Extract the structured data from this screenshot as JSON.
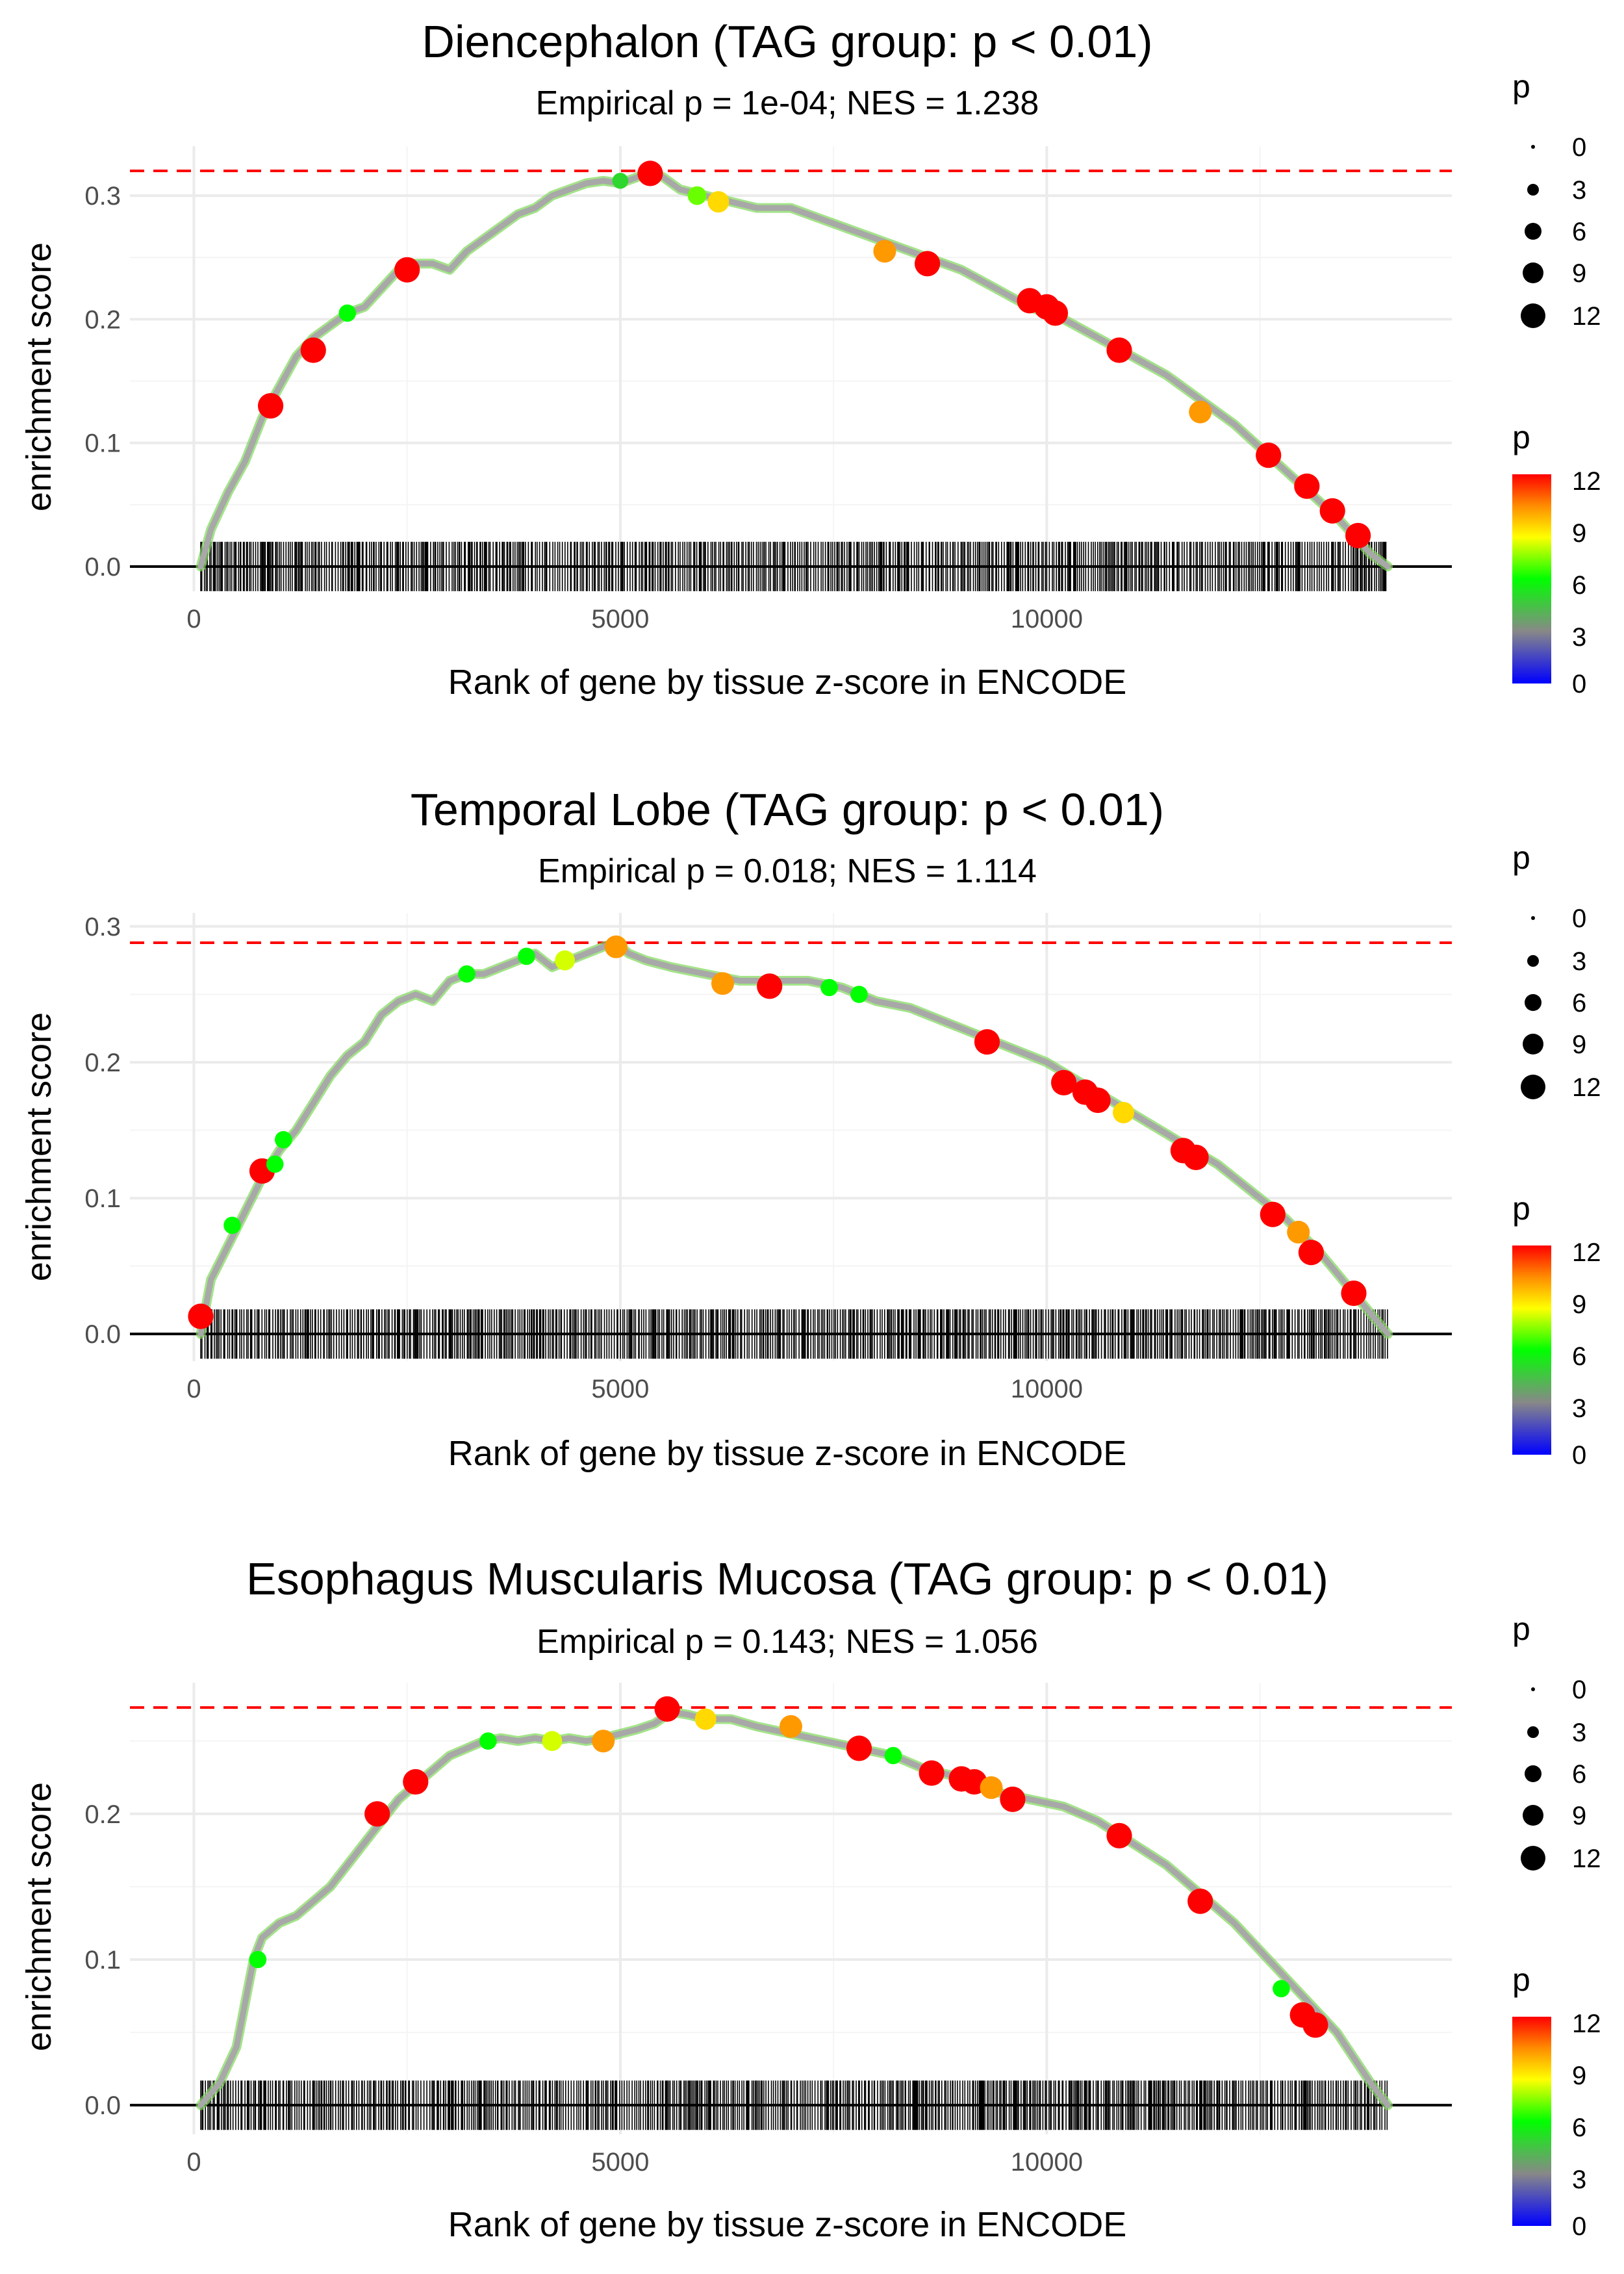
{
  "colors": {
    "ref_line": "#ff0000",
    "axis_line": "#000000",
    "curve_base": "#a8a8a8",
    "rug": "#000000",
    "gradient": [
      "#0000ff",
      "#888888",
      "#00ff00",
      "#ffff00",
      "#ff8c00",
      "#ff0000"
    ]
  },
  "legend": {
    "size_title": "p",
    "size_labels": [
      "0",
      "3",
      "6",
      "9",
      "12"
    ],
    "color_title": "p",
    "color_labels": [
      "12",
      "9",
      "6",
      "3",
      "0"
    ]
  },
  "chart_data": [
    {
      "type": "line",
      "title": "Diencephalon (TAG group: p < 0.01)",
      "subtitle": "Empirical p = 1e-04; NES = 1.238",
      "xlabel": "Rank of gene by tissue z-score in ENCODE",
      "ylabel": "enrichment score",
      "xlim": [
        -750,
        14750
      ],
      "ylim": [
        -0.02,
        0.34
      ],
      "xticks": [
        0,
        5000,
        10000
      ],
      "xtick_labels": [
        "0",
        "5000",
        "10000"
      ],
      "yticks": [
        0.0,
        0.1,
        0.2,
        0.3
      ],
      "ytick_labels": [
        "0.0",
        "0.1",
        "0.2",
        "0.3"
      ],
      "max_es": 0.32,
      "gene_range": [
        80,
        14000
      ],
      "curve_x": [
        80,
        200,
        400,
        600,
        800,
        1000,
        1200,
        1400,
        1600,
        1800,
        2000,
        2200,
        2400,
        2600,
        2800,
        3000,
        3200,
        3400,
        3600,
        3800,
        4000,
        4200,
        4400,
        4600,
        4800,
        5000,
        5200,
        5350,
        5500,
        5700,
        6000,
        6300,
        6600,
        7000,
        7400,
        7800,
        8200,
        8600,
        9000,
        9400,
        9800,
        10200,
        10600,
        11000,
        11400,
        11800,
        12200,
        12600,
        13000,
        13400,
        13800,
        14000
      ],
      "curve_y": [
        0.0,
        0.03,
        0.06,
        0.085,
        0.12,
        0.145,
        0.17,
        0.185,
        0.195,
        0.205,
        0.21,
        0.225,
        0.24,
        0.245,
        0.245,
        0.24,
        0.255,
        0.265,
        0.275,
        0.285,
        0.29,
        0.3,
        0.305,
        0.31,
        0.312,
        0.31,
        0.315,
        0.32,
        0.315,
        0.305,
        0.3,
        0.295,
        0.29,
        0.29,
        0.28,
        0.27,
        0.26,
        0.25,
        0.24,
        0.225,
        0.21,
        0.2,
        0.185,
        0.17,
        0.155,
        0.135,
        0.115,
        0.09,
        0.065,
        0.04,
        0.01,
        0.0
      ],
      "points": [
        {
          "x": 900,
          "y": 0.13,
          "p": 12
        },
        {
          "x": 1400,
          "y": 0.175,
          "p": 12
        },
        {
          "x": 1800,
          "y": 0.205,
          "p": 6
        },
        {
          "x": 2500,
          "y": 0.24,
          "p": 12
        },
        {
          "x": 5000,
          "y": 0.312,
          "p": 5
        },
        {
          "x": 5350,
          "y": 0.318,
          "p": 12
        },
        {
          "x": 5900,
          "y": 0.3,
          "p": 7
        },
        {
          "x": 6150,
          "y": 0.295,
          "p": 9
        },
        {
          "x": 8100,
          "y": 0.255,
          "p": 10
        },
        {
          "x": 8600,
          "y": 0.245,
          "p": 12
        },
        {
          "x": 9800,
          "y": 0.215,
          "p": 12
        },
        {
          "x": 10000,
          "y": 0.21,
          "p": 12
        },
        {
          "x": 10100,
          "y": 0.205,
          "p": 12
        },
        {
          "x": 10850,
          "y": 0.175,
          "p": 12
        },
        {
          "x": 11800,
          "y": 0.125,
          "p": 10
        },
        {
          "x": 12600,
          "y": 0.09,
          "p": 12
        },
        {
          "x": 13050,
          "y": 0.065,
          "p": 12
        },
        {
          "x": 13350,
          "y": 0.045,
          "p": 12
        },
        {
          "x": 13650,
          "y": 0.025,
          "p": 12
        }
      ]
    },
    {
      "type": "line",
      "title": "Temporal Lobe (TAG group: p < 0.01)",
      "subtitle": "Empirical p = 0.018; NES = 1.114",
      "xlabel": "Rank of gene by tissue z-score in ENCODE",
      "ylabel": "enrichment score",
      "xlim": [
        -750,
        14750
      ],
      "ylim": [
        -0.02,
        0.31
      ],
      "xticks": [
        0,
        5000,
        10000
      ],
      "xtick_labels": [
        "0",
        "5000",
        "10000"
      ],
      "yticks": [
        0.0,
        0.1,
        0.2,
        0.3
      ],
      "ytick_labels": [
        "0.0",
        "0.1",
        "0.2",
        "0.3"
      ],
      "max_es": 0.288,
      "gene_range": [
        80,
        14000
      ],
      "curve_x": [
        80,
        200,
        400,
        600,
        800,
        1000,
        1200,
        1400,
        1600,
        1800,
        2000,
        2200,
        2400,
        2600,
        2800,
        3000,
        3200,
        3400,
        3600,
        3800,
        4000,
        4200,
        4400,
        4600,
        4800,
        4950,
        5100,
        5300,
        5600,
        6000,
        6400,
        6800,
        7200,
        7600,
        8000,
        8400,
        8800,
        9200,
        9600,
        10000,
        10400,
        10800,
        11200,
        11600,
        12000,
        12400,
        12800,
        13200,
        13600,
        14000
      ],
      "curve_y": [
        0.0,
        0.04,
        0.065,
        0.09,
        0.115,
        0.135,
        0.15,
        0.17,
        0.19,
        0.205,
        0.215,
        0.235,
        0.245,
        0.25,
        0.245,
        0.26,
        0.265,
        0.265,
        0.27,
        0.275,
        0.28,
        0.27,
        0.275,
        0.28,
        0.285,
        0.288,
        0.28,
        0.275,
        0.27,
        0.265,
        0.26,
        0.26,
        0.26,
        0.255,
        0.245,
        0.24,
        0.23,
        0.22,
        0.21,
        0.2,
        0.185,
        0.17,
        0.155,
        0.14,
        0.125,
        0.105,
        0.085,
        0.06,
        0.03,
        0.0
      ],
      "points": [
        {
          "x": 80,
          "y": 0.013,
          "p": 12
        },
        {
          "x": 450,
          "y": 0.08,
          "p": 6
        },
        {
          "x": 800,
          "y": 0.12,
          "p": 12
        },
        {
          "x": 950,
          "y": 0.125,
          "p": 6
        },
        {
          "x": 1050,
          "y": 0.143,
          "p": 6
        },
        {
          "x": 3200,
          "y": 0.265,
          "p": 6
        },
        {
          "x": 3900,
          "y": 0.278,
          "p": 6
        },
        {
          "x": 4350,
          "y": 0.275,
          "p": 8
        },
        {
          "x": 4950,
          "y": 0.285,
          "p": 10
        },
        {
          "x": 6200,
          "y": 0.258,
          "p": 10
        },
        {
          "x": 6750,
          "y": 0.256,
          "p": 12
        },
        {
          "x": 7450,
          "y": 0.255,
          "p": 6
        },
        {
          "x": 7800,
          "y": 0.25,
          "p": 6
        },
        {
          "x": 9300,
          "y": 0.215,
          "p": 12
        },
        {
          "x": 10200,
          "y": 0.185,
          "p": 12
        },
        {
          "x": 10450,
          "y": 0.178,
          "p": 12
        },
        {
          "x": 10600,
          "y": 0.172,
          "p": 12
        },
        {
          "x": 10900,
          "y": 0.163,
          "p": 9
        },
        {
          "x": 11600,
          "y": 0.135,
          "p": 12
        },
        {
          "x": 11750,
          "y": 0.13,
          "p": 12
        },
        {
          "x": 12650,
          "y": 0.088,
          "p": 12
        },
        {
          "x": 12950,
          "y": 0.075,
          "p": 10
        },
        {
          "x": 13100,
          "y": 0.06,
          "p": 12
        },
        {
          "x": 13600,
          "y": 0.03,
          "p": 12
        }
      ]
    },
    {
      "type": "line",
      "title": "Esophagus Muscularis Mucosa (TAG group: p < 0.01)",
      "subtitle": "Empirical p = 0.143; NES = 1.056",
      "xlabel": "Rank of gene by tissue z-score in ENCODE",
      "ylabel": "enrichment score",
      "xlim": [
        -750,
        14750
      ],
      "ylim": [
        -0.02,
        0.29
      ],
      "xticks": [
        0,
        5000,
        10000
      ],
      "xtick_labels": [
        "0",
        "5000",
        "10000"
      ],
      "yticks": [
        0.0,
        0.1,
        0.2
      ],
      "ytick_labels": [
        "0.0",
        "0.1",
        "0.2"
      ],
      "max_es": 0.273,
      "gene_range": [
        80,
        14000
      ],
      "curve_x": [
        80,
        300,
        500,
        600,
        700,
        800,
        1000,
        1200,
        1400,
        1600,
        1800,
        2000,
        2200,
        2400,
        2600,
        2800,
        3000,
        3200,
        3400,
        3600,
        3800,
        4000,
        4200,
        4400,
        4600,
        4800,
        5000,
        5200,
        5400,
        5600,
        5800,
        6000,
        6300,
        6600,
        7000,
        7400,
        7800,
        8200,
        8600,
        9000,
        9400,
        9800,
        10200,
        10600,
        11000,
        11400,
        11800,
        12200,
        12600,
        13000,
        13400,
        13800,
        14000
      ],
      "curve_y": [
        0.0,
        0.015,
        0.04,
        0.07,
        0.1,
        0.115,
        0.125,
        0.13,
        0.14,
        0.15,
        0.165,
        0.18,
        0.195,
        0.21,
        0.22,
        0.23,
        0.24,
        0.245,
        0.25,
        0.252,
        0.25,
        0.252,
        0.25,
        0.252,
        0.25,
        0.252,
        0.255,
        0.258,
        0.262,
        0.27,
        0.268,
        0.265,
        0.265,
        0.26,
        0.255,
        0.25,
        0.245,
        0.24,
        0.23,
        0.225,
        0.215,
        0.21,
        0.205,
        0.195,
        0.18,
        0.165,
        0.145,
        0.125,
        0.1,
        0.075,
        0.05,
        0.015,
        0.0
      ],
      "points": [
        {
          "x": 750,
          "y": 0.1,
          "p": 6
        },
        {
          "x": 2150,
          "y": 0.2,
          "p": 12
        },
        {
          "x": 2600,
          "y": 0.222,
          "p": 12
        },
        {
          "x": 3450,
          "y": 0.25,
          "p": 6
        },
        {
          "x": 4200,
          "y": 0.25,
          "p": 8
        },
        {
          "x": 4800,
          "y": 0.25,
          "p": 10
        },
        {
          "x": 5550,
          "y": 0.272,
          "p": 12
        },
        {
          "x": 6000,
          "y": 0.265,
          "p": 9
        },
        {
          "x": 7000,
          "y": 0.26,
          "p": 10
        },
        {
          "x": 7800,
          "y": 0.245,
          "p": 12
        },
        {
          "x": 8200,
          "y": 0.24,
          "p": 6
        },
        {
          "x": 8650,
          "y": 0.228,
          "p": 12
        },
        {
          "x": 9000,
          "y": 0.224,
          "p": 12
        },
        {
          "x": 9150,
          "y": 0.222,
          "p": 12
        },
        {
          "x": 9350,
          "y": 0.218,
          "p": 10
        },
        {
          "x": 9600,
          "y": 0.21,
          "p": 12
        },
        {
          "x": 10850,
          "y": 0.185,
          "p": 12
        },
        {
          "x": 11800,
          "y": 0.14,
          "p": 12
        },
        {
          "x": 12750,
          "y": 0.08,
          "p": 6
        },
        {
          "x": 13000,
          "y": 0.062,
          "p": 12
        },
        {
          "x": 13150,
          "y": 0.055,
          "p": 12
        }
      ]
    }
  ]
}
